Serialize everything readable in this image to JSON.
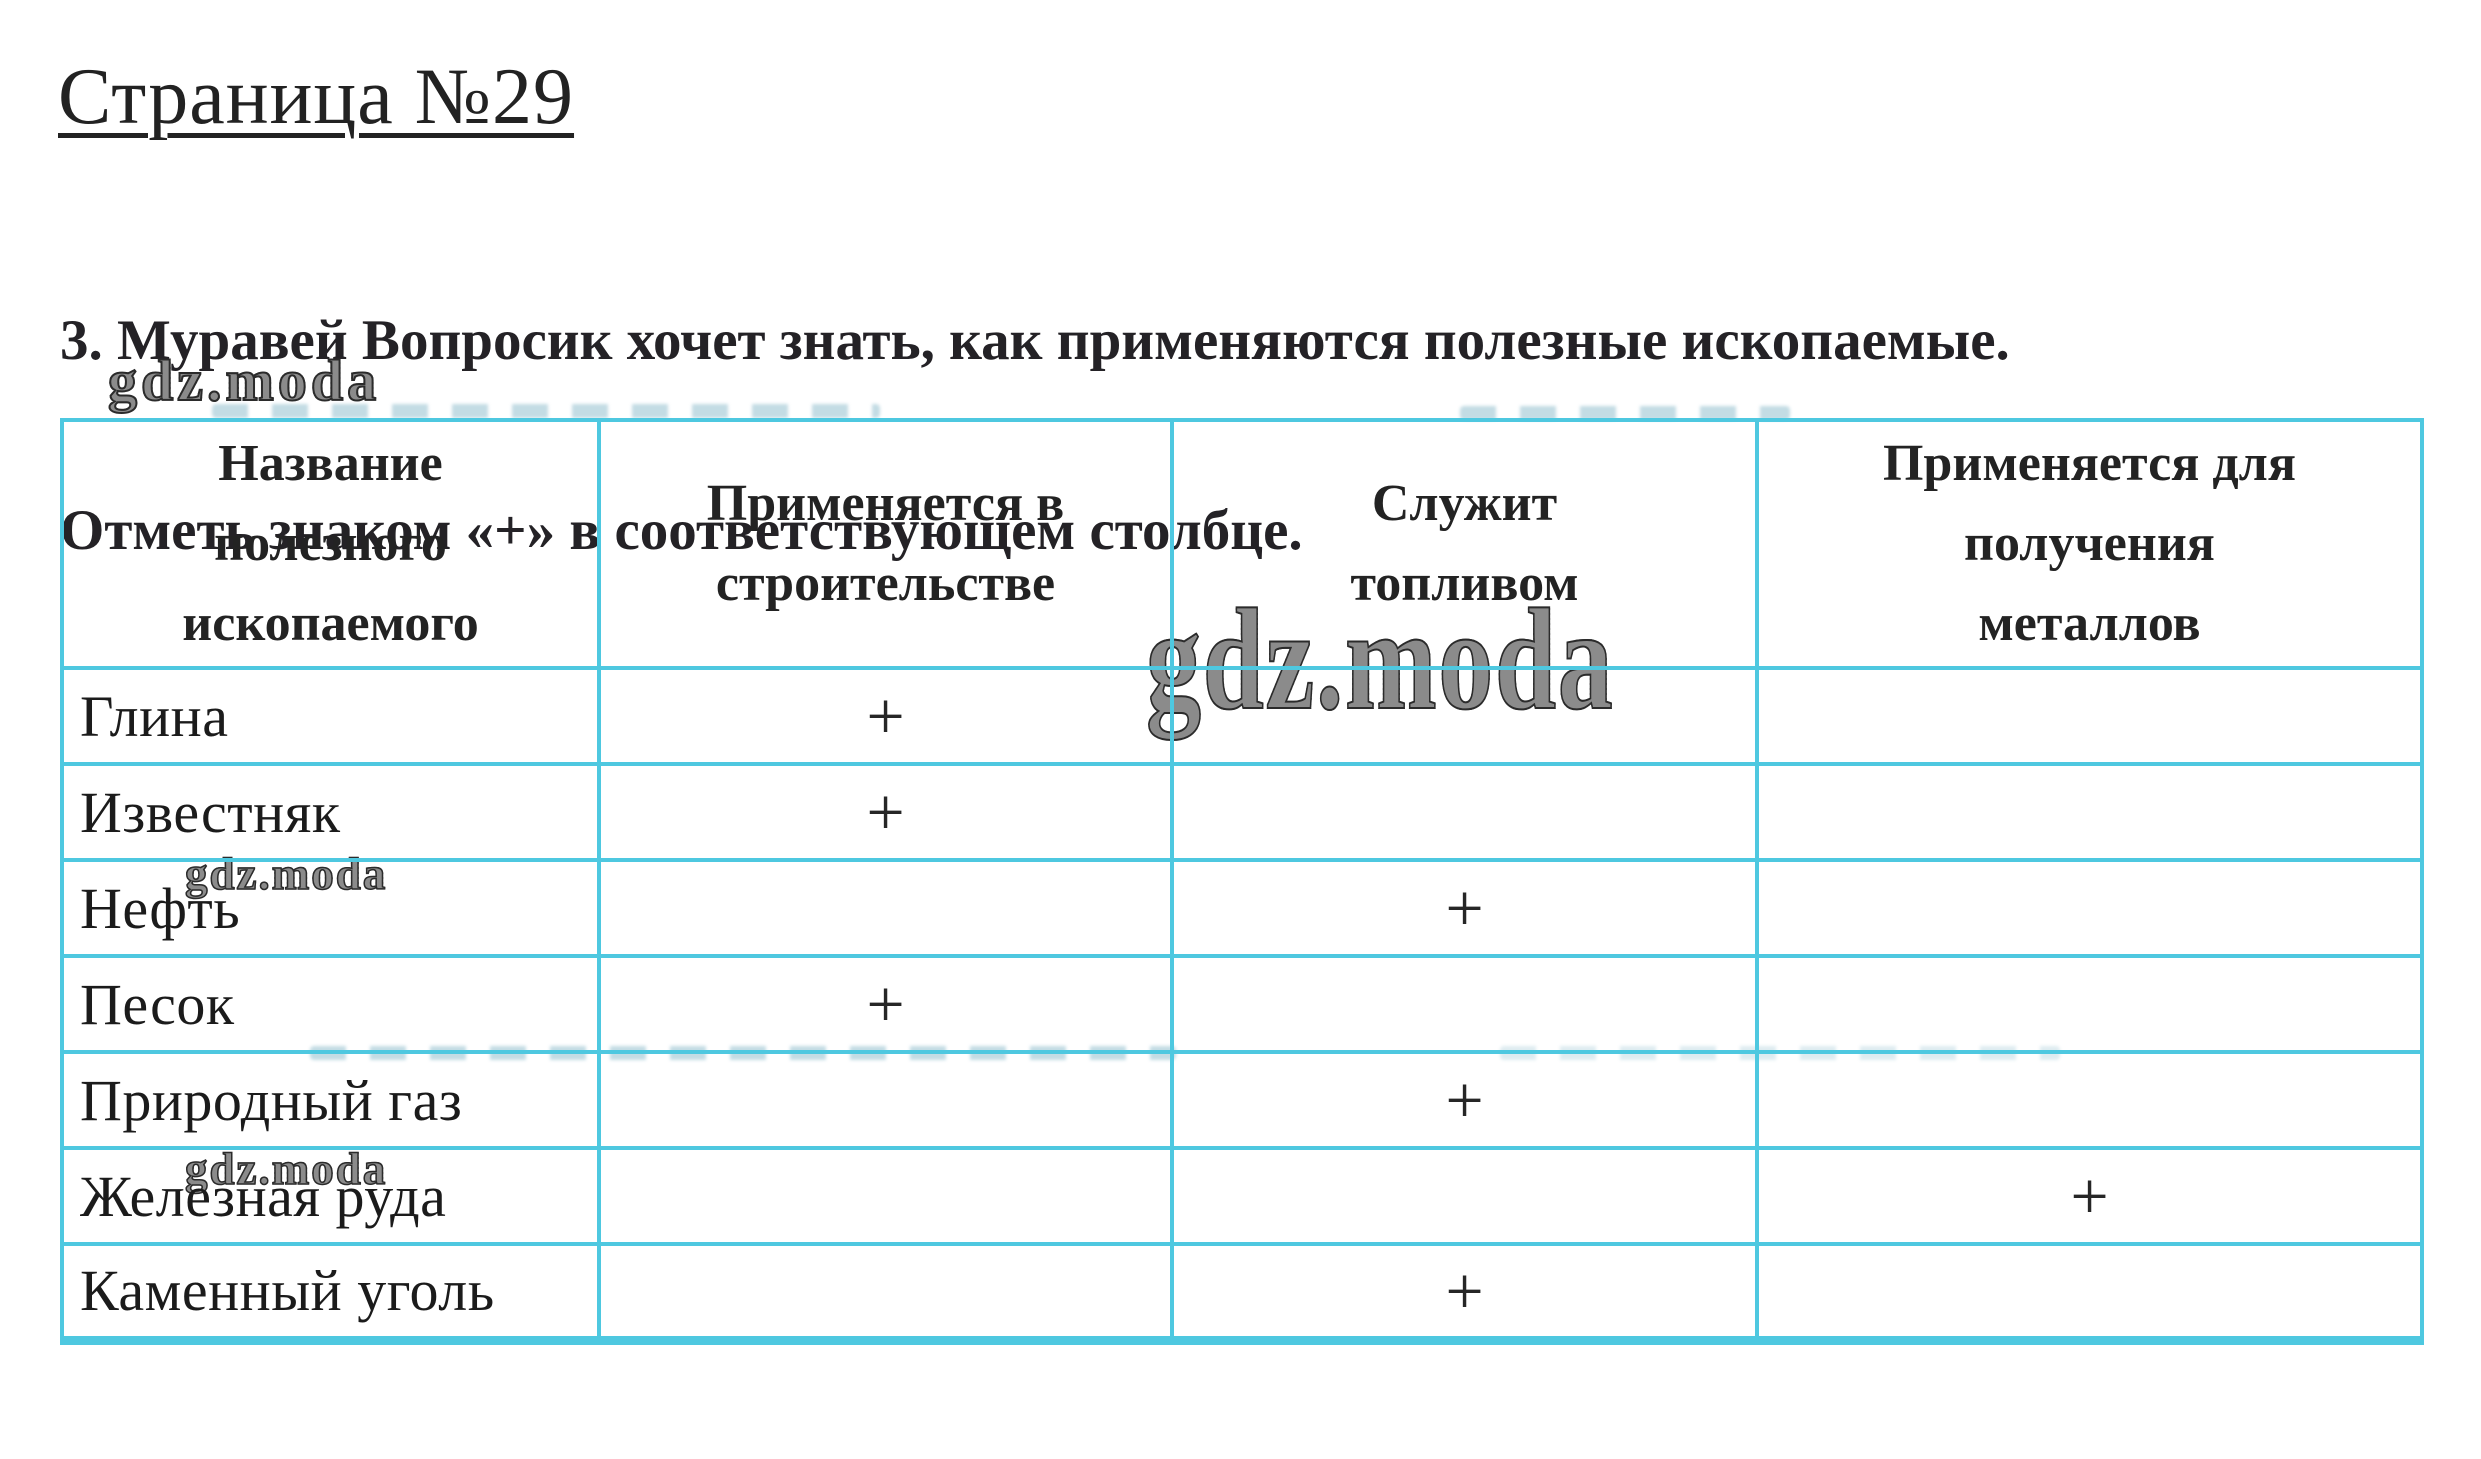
{
  "page": {
    "title": "Страница №29",
    "task_line1": "3. Муравей  Вопросик хочет знать, как применяются полезные ископаемые.",
    "task_line2": "Отметь знаком «+» в соответствующем столбце."
  },
  "watermark": {
    "text": "gdz.moda"
  },
  "table": {
    "columns": [
      "Название\nполезного\nископаемого",
      "Применяется в\nстроительстве",
      "Служит\nтопливом",
      "Применяется для\nполучения\nметаллов"
    ],
    "rows": [
      {
        "name": "Глина",
        "construction": "+",
        "fuel": "",
        "metals": ""
      },
      {
        "name": "Известняк",
        "construction": "+",
        "fuel": "",
        "metals": ""
      },
      {
        "name": "Нефть",
        "construction": "",
        "fuel": "+",
        "metals": ""
      },
      {
        "name": "Песок",
        "construction": "+",
        "fuel": "",
        "metals": ""
      },
      {
        "name": "Природный газ",
        "construction": "",
        "fuel": "+",
        "metals": ""
      },
      {
        "name": "Железная руда",
        "construction": "",
        "fuel": "",
        "metals": "+"
      },
      {
        "name": "Каменный уголь",
        "construction": "",
        "fuel": "+",
        "metals": ""
      }
    ]
  },
  "colors": {
    "table_border": "#4ec8e0",
    "text": "#1d1d1b"
  }
}
